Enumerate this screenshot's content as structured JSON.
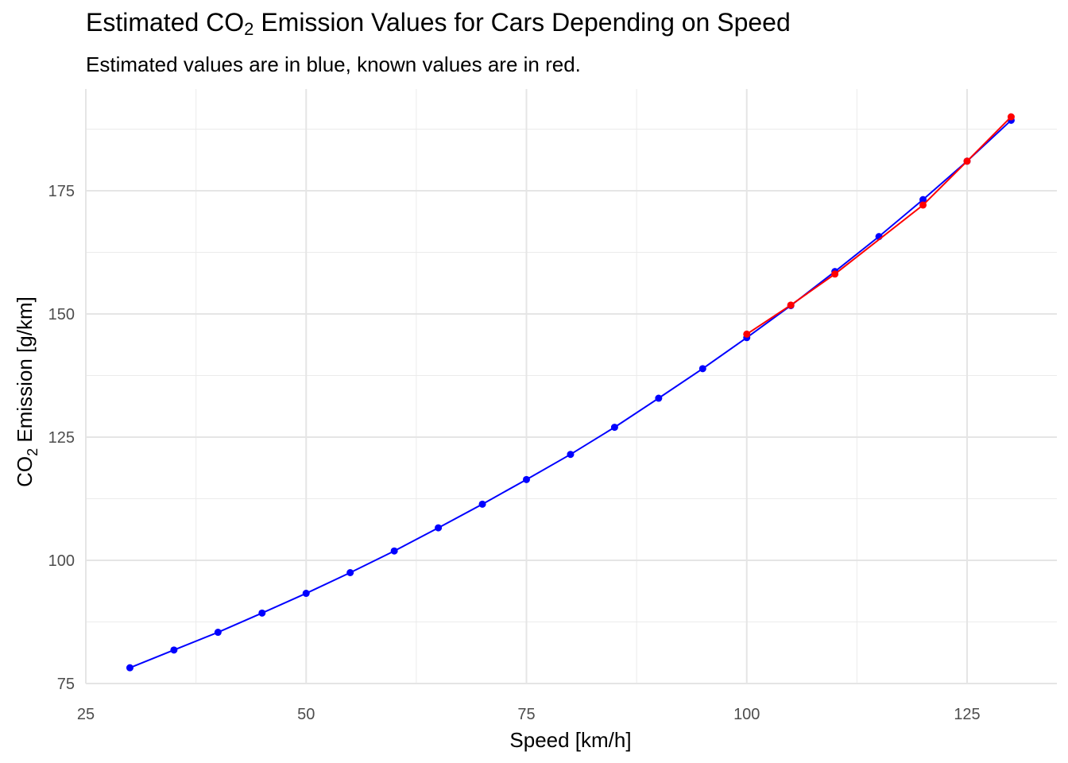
{
  "chart_data": {
    "type": "line",
    "title_parts": [
      "Estimated CO",
      "2",
      " Emission Values for Cars Depending on Speed"
    ],
    "subtitle": "Estimated values are in blue, known values are in red.",
    "xlabel": "Speed [km/h]",
    "ylabel_parts": [
      "CO",
      "2",
      " Emission [g/km]"
    ],
    "xlim": [
      25,
      135
    ],
    "ylim": [
      74,
      190
    ],
    "x_ticks": [
      25,
      50,
      75,
      100,
      125
    ],
    "x_minor_ticks": [
      37.5,
      62.5,
      87.5,
      112.5
    ],
    "y_ticks": [
      75,
      100,
      125,
      150,
      175
    ],
    "y_minor_ticks": [
      87.5,
      112.5,
      137.5,
      162.5,
      187.5
    ],
    "grid": true,
    "series": [
      {
        "color": "#0000ff",
        "x": [
          30,
          35,
          40,
          45,
          50,
          55,
          60,
          65,
          70,
          75,
          80,
          85,
          90,
          95,
          100,
          105,
          110,
          115,
          120,
          125,
          130
        ],
        "y": [
          78.2,
          81.8,
          85.4,
          89.3,
          93.3,
          97.5,
          101.9,
          106.6,
          111.4,
          116.4,
          121.5,
          127.0,
          132.9,
          138.9,
          145.2,
          151.7,
          158.6,
          165.7,
          173.2,
          181.0,
          189.3
        ]
      },
      {
        "color": "#ff0000",
        "x": [
          100,
          105,
          110,
          120,
          125,
          130
        ],
        "y": [
          145.9,
          151.8,
          158.1,
          172.1,
          181.0,
          190.0
        ]
      }
    ]
  }
}
